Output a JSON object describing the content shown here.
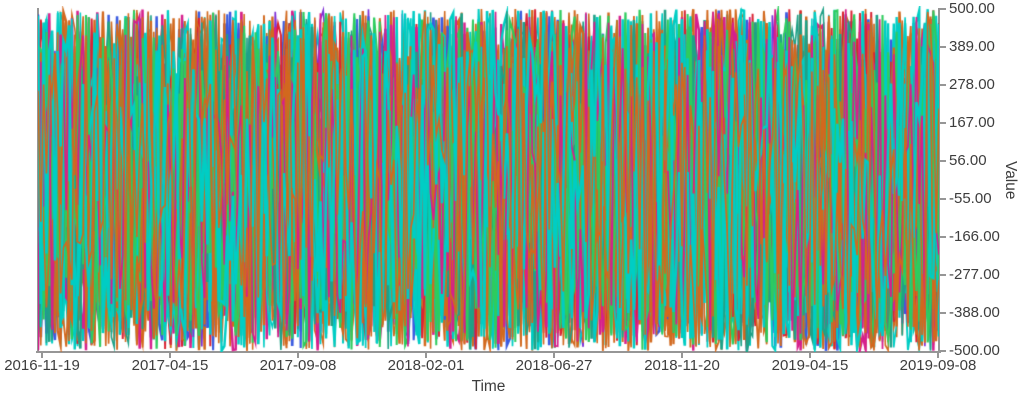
{
  "chart_data": {
    "type": "line",
    "title": "",
    "xlabel": "Time",
    "ylabel": "Value",
    "x_tick_labels": [
      "2016-11-19",
      "2017-04-15",
      "2017-09-08",
      "2018-02-01",
      "2018-06-27",
      "2018-11-20",
      "2019-04-15",
      "2019-09-08"
    ],
    "y_tick_labels": [
      "500.00",
      "389.00",
      "278.00",
      "167.00",
      "56.00",
      "-55.00",
      "-166.00",
      "-277.00",
      "-388.00",
      "-500.00"
    ],
    "y_tick_values": [
      500,
      389,
      278,
      167,
      56,
      -55,
      -166,
      -277,
      -388,
      -500
    ],
    "ylim": [
      -500,
      500
    ],
    "x_range_dates": [
      "2016-11-19",
      "2019-09-08"
    ],
    "grid": "off",
    "legend": "none",
    "axis_color": "#969696",
    "tick_text_color": "#3d3d3d",
    "background_color": "#ffffff",
    "series_description": "Many overlapping high-frequency noise line series spanning the full -500 to 500 value range across the whole time axis",
    "series_palette": [
      {
        "name": "orange",
        "hex": "#d2691e",
        "weight": 28
      },
      {
        "name": "cyan",
        "hex": "#00cdc4",
        "weight": 26
      },
      {
        "name": "green",
        "hex": "#2ecc5e",
        "weight": 11
      },
      {
        "name": "blue",
        "hex": "#3a5be0",
        "weight": 10
      },
      {
        "name": "magenta",
        "hex": "#d61f8d",
        "weight": 9
      },
      {
        "name": "red",
        "hex": "#da2332",
        "weight": 7
      },
      {
        "name": "purple",
        "hex": "#7e2fd6",
        "weight": 5
      },
      {
        "name": "seagreen",
        "hex": "#1fa187",
        "weight": 4
      }
    ],
    "render": {
      "num_series": 34,
      "points_per_series": 320,
      "value_min": -500,
      "value_max": 500,
      "seed": 1337,
      "line_width_min": 1.5,
      "line_width_max": 2.7
    }
  }
}
